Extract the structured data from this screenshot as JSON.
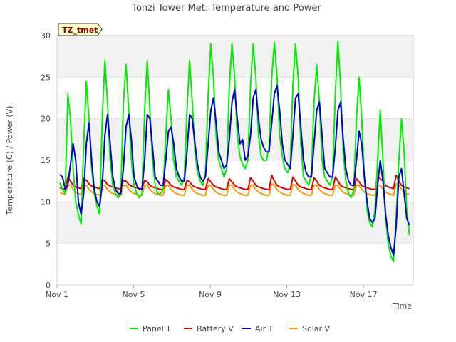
{
  "chart_data": {
    "type": "line",
    "title": "Tonzi Tower Met: Temperature and Power",
    "xlabel": "Time",
    "ylabel": "Temperature (C) / Power (V)",
    "badge": "TZ_tmet",
    "ylim": [
      0,
      30
    ],
    "yticks": [
      0,
      5,
      10,
      15,
      20,
      25,
      30
    ],
    "xlim": [
      1,
      19.6
    ],
    "xticks": [
      {
        "value": 1,
        "label": "Nov 1"
      },
      {
        "value": 5,
        "label": "Nov 5"
      },
      {
        "value": 9,
        "label": "Nov 9"
      },
      {
        "value": 13,
        "label": "Nov 13"
      },
      {
        "value": 17,
        "label": "Nov 17"
      }
    ],
    "grid": true,
    "legend_position": "bottom",
    "x_step_days": 0.125,
    "x_start": 1.15,
    "series": [
      {
        "name": "Panel T",
        "color": "#00ee00",
        "values": [
          12.3,
          11.5,
          11.0,
          23.0,
          20.0,
          14.0,
          10.0,
          8.5,
          7.3,
          17.0,
          24.5,
          20.0,
          14.0,
          11.0,
          9.5,
          8.5,
          20.0,
          27.0,
          22.0,
          15.0,
          12.0,
          11.0,
          10.5,
          11.0,
          22.0,
          26.5,
          21.0,
          15.0,
          12.0,
          11.0,
          10.5,
          11.0,
          21.0,
          27.0,
          21.0,
          15.0,
          12.0,
          11.0,
          11.0,
          11.5,
          18.0,
          23.5,
          20.0,
          15.0,
          13.0,
          12.5,
          12.0,
          13.0,
          21.0,
          27.0,
          22.0,
          16.0,
          13.5,
          12.5,
          12.0,
          13.5,
          23.0,
          29.0,
          25.0,
          18.0,
          15.0,
          14.0,
          13.0,
          14.0,
          24.0,
          29.0,
          25.0,
          18.0,
          15.5,
          14.5,
          14.0,
          15.0,
          24.0,
          29.0,
          25.0,
          18.0,
          15.5,
          15.0,
          15.0,
          16.5,
          25.0,
          29.2,
          25.0,
          18.0,
          15.5,
          14.0,
          13.5,
          14.5,
          24.0,
          29.0,
          25.0,
          17.0,
          13.0,
          12.5,
          12.0,
          13.5,
          22.0,
          26.5,
          22.0,
          15.0,
          13.0,
          12.5,
          12.0,
          13.0,
          23.0,
          29.3,
          24.0,
          16.0,
          12.5,
          11.0,
          10.5,
          11.5,
          20.0,
          25.0,
          20.0,
          13.0,
          9.0,
          7.5,
          7.0,
          9.0,
          15.0,
          21.0,
          15.0,
          8.0,
          5.0,
          3.5,
          2.8,
          8.0,
          15.0,
          20.0,
          16.0,
          9.0,
          6.0
        ]
      },
      {
        "name": "Battery V",
        "color": "#dd0000",
        "values": [
          11.7,
          11.6,
          11.5,
          13.0,
          12.5,
          12.0,
          11.8,
          11.7,
          11.6,
          12.8,
          12.6,
          12.2,
          11.9,
          11.8,
          11.7,
          11.6,
          12.7,
          12.5,
          12.1,
          11.9,
          11.8,
          11.7,
          11.6,
          11.6,
          12.6,
          12.5,
          12.1,
          11.9,
          11.8,
          11.7,
          11.6,
          11.6,
          12.6,
          12.4,
          12.0,
          11.8,
          11.7,
          11.6,
          11.5,
          11.5,
          12.7,
          12.4,
          12.0,
          11.8,
          11.7,
          11.6,
          11.5,
          11.5,
          12.6,
          12.4,
          12.0,
          11.8,
          11.7,
          11.6,
          11.5,
          11.5,
          12.8,
          12.4,
          12.0,
          11.8,
          11.7,
          11.6,
          11.5,
          11.5,
          12.8,
          12.4,
          12.0,
          11.8,
          11.7,
          11.6,
          11.5,
          11.5,
          12.9,
          12.5,
          12.0,
          11.8,
          11.7,
          11.6,
          11.5,
          11.5,
          13.2,
          12.5,
          12.0,
          11.8,
          11.7,
          11.6,
          11.5,
          11.5,
          13.0,
          12.5,
          12.0,
          11.8,
          11.7,
          11.6,
          11.5,
          11.5,
          12.9,
          12.5,
          12.0,
          11.8,
          11.7,
          11.6,
          11.5,
          11.5,
          13.0,
          12.5,
          12.0,
          11.8,
          11.7,
          11.6,
          11.5,
          11.5,
          12.8,
          12.4,
          12.0,
          11.8,
          11.7,
          11.6,
          11.5,
          11.5,
          13.0,
          12.8,
          12.5,
          12.0,
          11.8,
          11.7,
          11.6,
          13.2,
          12.5,
          12.0,
          11.8,
          11.7,
          11.6
        ]
      },
      {
        "name": "Air T",
        "color": "#0000cc",
        "values": [
          13.3,
          13.0,
          11.5,
          12.0,
          14.5,
          17.0,
          15.0,
          10.0,
          8.5,
          11.0,
          17.0,
          19.5,
          15.0,
          11.5,
          10.0,
          9.5,
          12.0,
          18.0,
          20.5,
          17.0,
          13.0,
          11.5,
          11.0,
          11.0,
          14.0,
          19.0,
          20.5,
          17.5,
          13.0,
          12.0,
          11.5,
          11.5,
          15.0,
          20.5,
          20.0,
          16.5,
          13.0,
          12.5,
          12.0,
          12.0,
          15.0,
          18.5,
          19.0,
          17.0,
          14.0,
          13.0,
          12.5,
          12.5,
          16.0,
          20.5,
          20.0,
          17.0,
          14.5,
          13.0,
          12.5,
          13.0,
          17.0,
          21.0,
          22.5,
          19.5,
          16.0,
          15.0,
          14.0,
          14.5,
          17.5,
          22.0,
          23.5,
          20.0,
          17.0,
          17.5,
          15.0,
          15.5,
          18.0,
          22.5,
          23.5,
          20.0,
          17.5,
          16.5,
          16.0,
          16.0,
          19.5,
          23.0,
          24.0,
          21.0,
          17.0,
          15.0,
          14.5,
          14.0,
          18.0,
          22.5,
          23.0,
          19.0,
          15.0,
          13.5,
          13.0,
          13.0,
          17.0,
          21.0,
          22.0,
          18.0,
          14.0,
          13.5,
          13.0,
          13.0,
          16.5,
          21.0,
          22.0,
          17.5,
          14.0,
          12.5,
          12.0,
          12.0,
          15.0,
          18.5,
          17.0,
          13.0,
          10.0,
          8.0,
          7.5,
          8.0,
          12.0,
          15.0,
          12.5,
          8.5,
          6.0,
          4.5,
          3.6,
          7.0,
          13.0,
          14.0,
          11.0,
          8.0,
          7.2
        ]
      },
      {
        "name": "Solar V",
        "color": "#ff9900",
        "values": [
          11.1,
          11.0,
          10.9,
          12.0,
          12.0,
          11.5,
          11.2,
          11.0,
          10.9,
          12.0,
          12.0,
          11.5,
          11.2,
          11.0,
          10.9,
          10.8,
          12.0,
          12.0,
          11.5,
          11.2,
          11.0,
          10.9,
          10.8,
          10.8,
          12.0,
          12.0,
          11.5,
          11.2,
          11.0,
          10.9,
          10.8,
          10.8,
          12.0,
          12.0,
          11.5,
          11.2,
          11.0,
          10.9,
          10.8,
          10.8,
          12.0,
          12.0,
          11.5,
          11.2,
          11.0,
          10.9,
          10.8,
          10.8,
          12.0,
          12.0,
          11.5,
          11.2,
          11.0,
          10.9,
          10.8,
          10.8,
          12.0,
          12.0,
          11.5,
          11.2,
          11.0,
          10.9,
          10.8,
          10.8,
          12.0,
          12.0,
          11.5,
          11.2,
          11.0,
          10.9,
          10.8,
          10.8,
          12.0,
          12.0,
          11.5,
          11.2,
          11.0,
          10.9,
          10.8,
          10.8,
          12.2,
          12.0,
          11.5,
          11.2,
          11.0,
          10.9,
          10.8,
          10.8,
          12.1,
          12.0,
          11.5,
          11.2,
          11.0,
          10.9,
          10.8,
          10.8,
          12.0,
          12.0,
          11.5,
          11.2,
          11.0,
          10.9,
          10.8,
          10.8,
          12.0,
          12.0,
          11.5,
          11.2,
          11.0,
          10.9,
          10.8,
          10.8,
          12.0,
          12.0,
          11.5,
          11.2,
          11.0,
          10.9,
          10.8,
          10.8,
          12.0,
          12.0,
          11.5,
          11.2,
          11.0,
          10.9,
          10.8,
          12.2,
          12.0,
          11.5,
          11.2,
          11.0,
          10.9
        ]
      }
    ]
  }
}
